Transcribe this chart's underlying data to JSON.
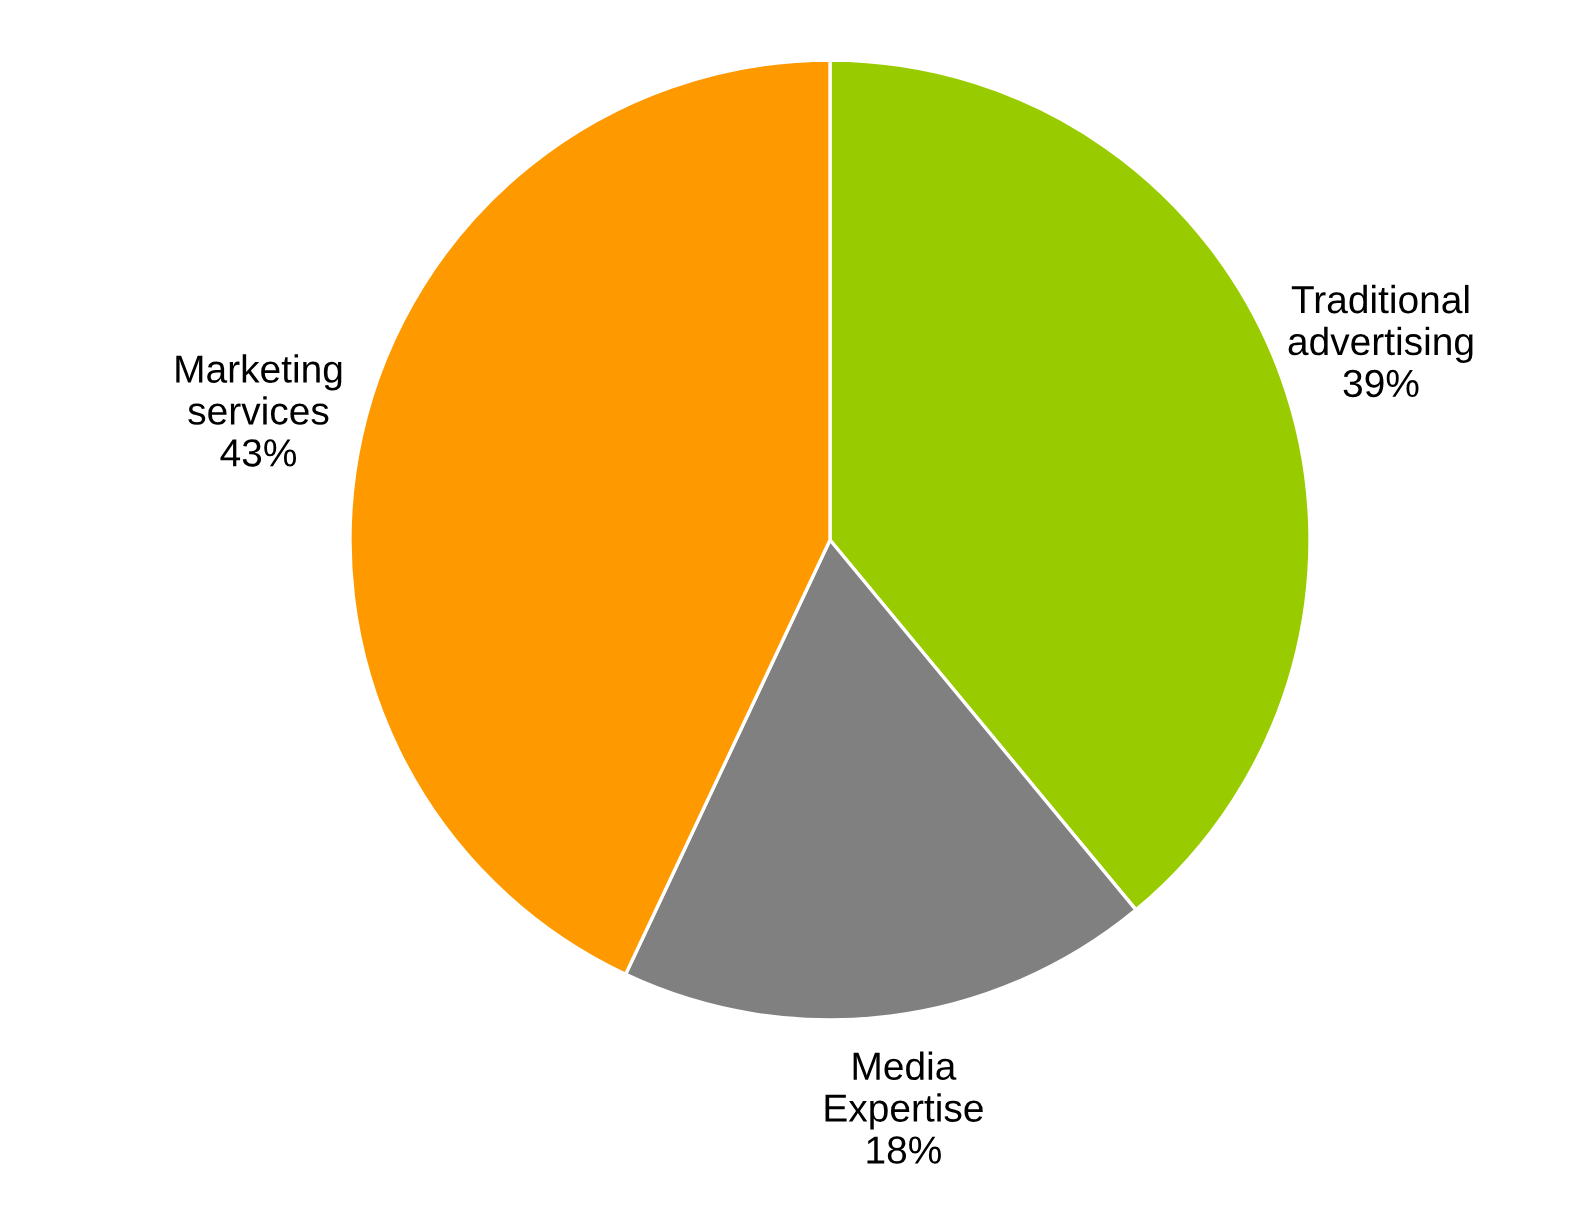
{
  "chart_data": {
    "type": "pie",
    "categories": [
      "Traditional advertising",
      "Media Expertise",
      "Marketing services"
    ],
    "values": [
      39,
      18,
      43
    ],
    "value_labels": [
      "39%",
      "18%",
      "43%"
    ],
    "colors": [
      "#99cc00",
      "#808080",
      "#ff9900"
    ]
  }
}
